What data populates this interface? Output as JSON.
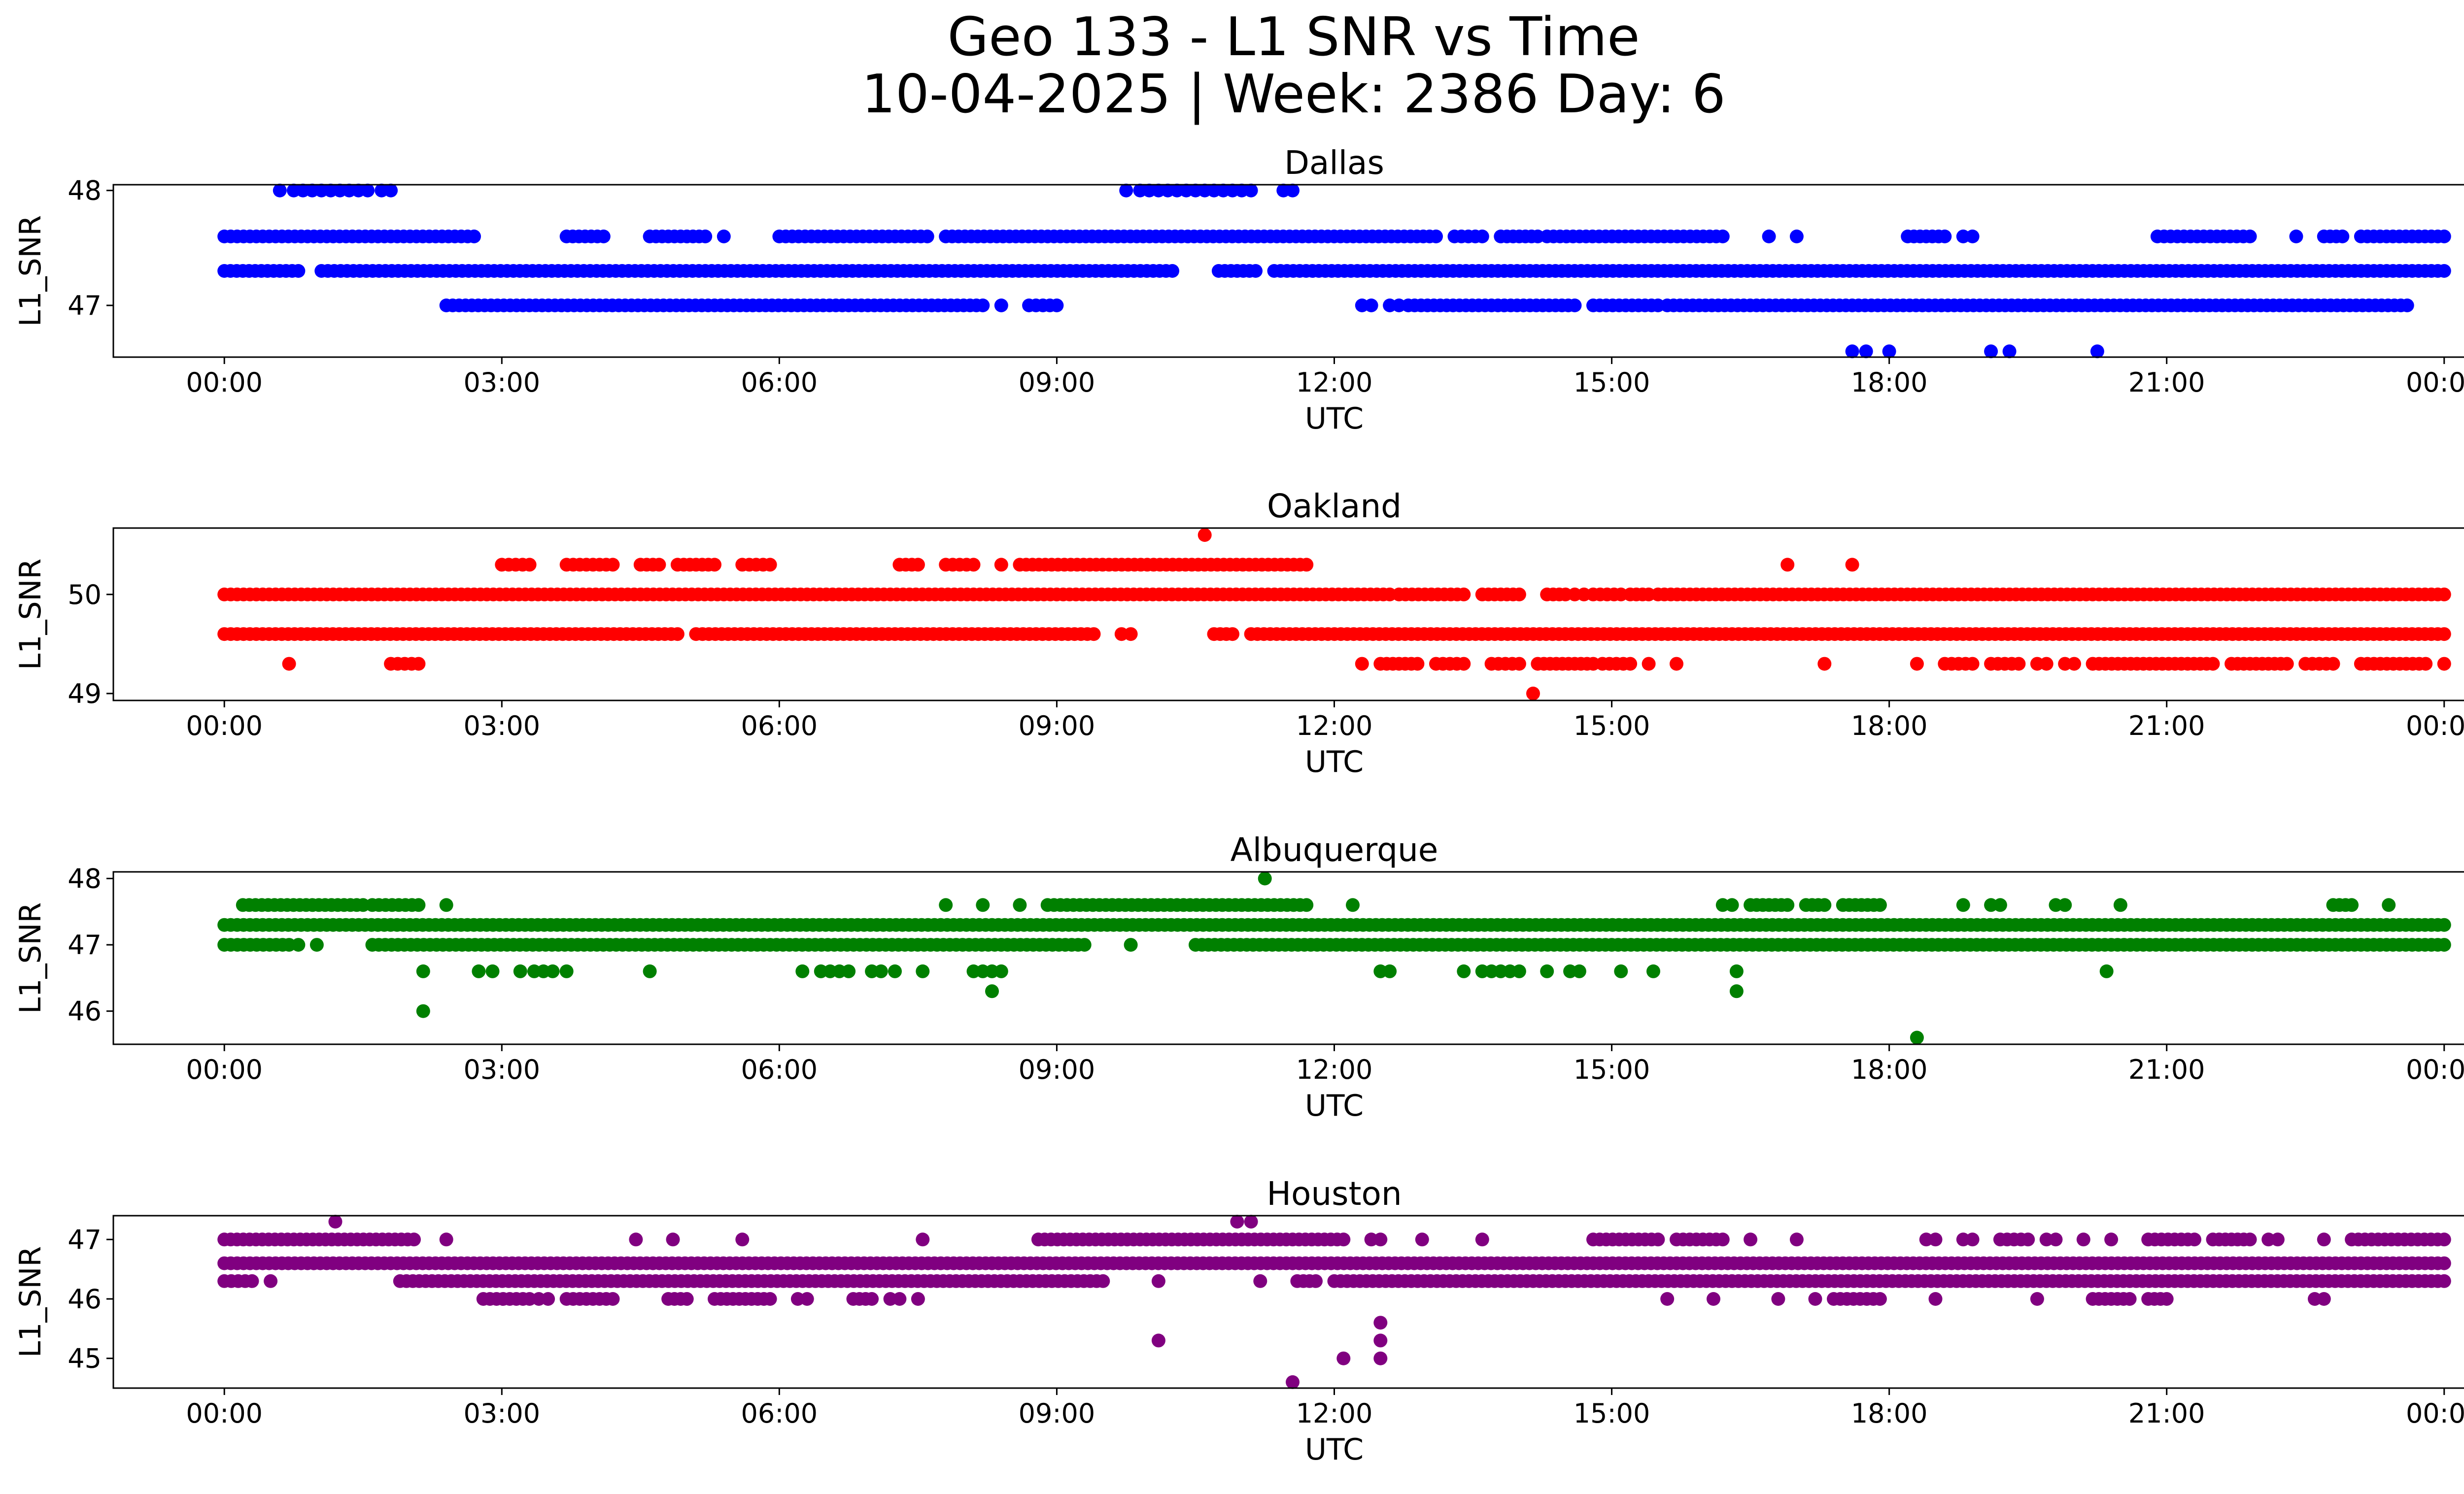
{
  "title_line1": "Geo 133 - L1 SNR vs Time",
  "title_line2": "10-04-2025 | Week: 2386 Day: 6",
  "chart_data": [
    {
      "type": "scatter",
      "title": "Dallas",
      "color": "#0000ff",
      "xlabel": "UTC",
      "ylabel": "L1_SNR",
      "x_ticks": [
        "00:00",
        "03:00",
        "06:00",
        "09:00",
        "12:00",
        "15:00",
        "18:00",
        "21:00",
        "00:00"
      ],
      "x_unit": "hours UTC",
      "xlim": [
        -1.2,
        25.2
      ],
      "ylim": [
        46.55,
        48.05
      ],
      "y_ticks": [
        47,
        48
      ],
      "series": [
        {
          "name": "L1 SNR 48.0",
          "y": 48.0,
          "x": [
            0.6,
            0.75,
            0.85,
            0.95,
            1.05,
            1.15,
            1.25,
            1.35,
            1.45,
            1.55,
            1.7,
            1.8,
            9.75,
            9.9,
            10.0,
            10.1,
            10.2,
            10.3,
            10.4,
            10.5,
            10.6,
            10.7,
            10.8,
            10.9,
            11.0,
            11.1,
            11.45,
            11.55
          ]
        },
        {
          "name": "L1 SNR 47.6",
          "y": 47.6,
          "runs": [
            [
              0.0,
              2.7
            ],
            [
              3.7,
              4.1
            ],
            [
              4.6,
              5.2
            ],
            [
              5.4,
              5.4
            ],
            [
              6.0,
              7.6
            ],
            [
              7.8,
              13.1
            ],
            [
              13.3,
              13.6
            ],
            [
              13.8,
              14.2
            ],
            [
              14.3,
              16.2
            ],
            [
              16.7,
              16.7
            ],
            [
              17.0,
              17.0
            ],
            [
              18.2,
              18.6
            ],
            [
              18.8,
              18.9
            ],
            [
              20.9,
              21.9
            ],
            [
              22.4,
              22.4
            ],
            [
              22.7,
              22.9
            ],
            [
              23.1,
              24.0
            ]
          ]
        },
        {
          "name": "L1 SNR 47.3",
          "y": 47.3,
          "runs": [
            [
              0.0,
              0.8
            ],
            [
              1.05,
              10.25
            ],
            [
              10.75,
              11.15
            ],
            [
              11.35,
              24.0
            ]
          ]
        },
        {
          "name": "L1 SNR 47.0",
          "y": 47.0,
          "runs": [
            [
              2.4,
              8.2
            ],
            [
              8.4,
              8.4
            ],
            [
              8.7,
              9.0
            ],
            [
              12.3,
              12.4
            ],
            [
              12.6,
              12.7
            ],
            [
              12.8,
              14.6
            ],
            [
              14.8,
              15.5
            ],
            [
              15.6,
              23.6
            ]
          ]
        },
        {
          "name": "L1 SNR 46.6",
          "y": 46.6,
          "x": [
            17.6,
            17.75,
            18.0,
            19.1,
            19.3,
            20.25
          ]
        }
      ]
    },
    {
      "type": "scatter",
      "title": "Oakland",
      "color": "#ff0000",
      "xlabel": "UTC",
      "ylabel": "L1_SNR",
      "x_ticks": [
        "00:00",
        "03:00",
        "06:00",
        "09:00",
        "12:00",
        "15:00",
        "18:00",
        "21:00",
        "00:00"
      ],
      "x_unit": "hours UTC",
      "xlim": [
        -1.2,
        25.2
      ],
      "ylim": [
        48.93,
        50.67
      ],
      "y_ticks": [
        49,
        50
      ],
      "series": [
        {
          "name": "L1 SNR 50.6",
          "y": 50.6,
          "x": [
            10.6
          ]
        },
        {
          "name": "L1 SNR 50.3",
          "y": 50.3,
          "runs": [
            [
              3.0,
              3.3
            ],
            [
              3.7,
              4.2
            ],
            [
              4.5,
              4.7
            ],
            [
              4.9,
              5.3
            ],
            [
              5.6,
              5.9
            ],
            [
              7.3,
              7.5
            ],
            [
              7.8,
              8.1
            ],
            [
              8.4,
              8.4
            ],
            [
              8.6,
              11.7
            ],
            [
              16.9,
              16.9
            ],
            [
              17.6,
              17.6
            ]
          ]
        },
        {
          "name": "L1 SNR 50.0",
          "y": 50.0,
          "runs": [
            [
              0.0,
              12.6
            ],
            [
              12.7,
              13.4
            ],
            [
              13.6,
              14.0
            ],
            [
              14.3,
              14.5
            ],
            [
              14.6,
              14.7
            ],
            [
              14.8,
              15.1
            ],
            [
              15.2,
              15.4
            ],
            [
              15.5,
              24.0
            ]
          ]
        },
        {
          "name": "L1 SNR 49.6",
          "y": 49.6,
          "runs": [
            [
              0.0,
              4.9
            ],
            [
              5.1,
              9.4
            ],
            [
              9.7,
              9.8
            ],
            [
              10.7,
              10.9
            ],
            [
              11.1,
              24.0
            ]
          ]
        },
        {
          "name": "L1 SNR 49.3",
          "y": 49.3,
          "runs": [
            [
              0.7,
              0.7
            ],
            [
              1.8,
              2.1
            ],
            [
              12.3,
              12.3
            ],
            [
              12.5,
              12.9
            ],
            [
              13.1,
              13.4
            ],
            [
              13.7,
              14.0
            ],
            [
              14.2,
              14.8
            ],
            [
              14.9,
              15.2
            ],
            [
              15.4,
              15.4
            ],
            [
              15.7,
              15.7
            ],
            [
              17.3,
              17.3
            ],
            [
              18.3,
              18.3
            ],
            [
              18.6,
              18.9
            ],
            [
              19.1,
              19.4
            ],
            [
              19.6,
              19.7
            ],
            [
              19.9,
              20.0
            ],
            [
              20.2,
              21.5
            ],
            [
              21.7,
              22.3
            ],
            [
              22.5,
              22.8
            ],
            [
              23.1,
              23.8
            ],
            [
              24.0,
              24.0
            ]
          ]
        },
        {
          "name": "L1 SNR 49.0",
          "y": 49.0,
          "x": [
            14.15
          ]
        }
      ]
    },
    {
      "type": "scatter",
      "title": "Albuquerque",
      "color": "#008000",
      "xlabel": "UTC",
      "ylabel": "L1_SNR",
      "x_ticks": [
        "00:00",
        "03:00",
        "06:00",
        "09:00",
        "12:00",
        "15:00",
        "18:00",
        "21:00",
        "00:00"
      ],
      "x_unit": "hours UTC",
      "xlim": [
        -1.2,
        25.2
      ],
      "ylim": [
        45.5,
        48.1
      ],
      "y_ticks": [
        46,
        47,
        48
      ],
      "series": [
        {
          "name": "L1 SNR 48.0",
          "y": 48.0,
          "x": [
            11.25
          ]
        },
        {
          "name": "L1 SNR 47.6",
          "y": 47.6,
          "runs": [
            [
              0.2,
              1.5
            ],
            [
              1.6,
              2.1
            ],
            [
              2.4,
              2.4
            ],
            [
              7.8,
              7.8
            ],
            [
              8.2,
              8.2
            ],
            [
              8.6,
              8.6
            ],
            [
              8.9,
              11.7
            ],
            [
              12.2,
              12.2
            ],
            [
              16.2,
              16.3
            ],
            [
              16.5,
              16.9
            ],
            [
              17.1,
              17.3
            ],
            [
              17.5,
              17.9
            ],
            [
              18.8,
              18.8
            ],
            [
              19.1,
              19.2
            ],
            [
              19.8,
              19.9
            ],
            [
              20.5,
              20.5
            ],
            [
              22.8,
              23.0
            ],
            [
              23.4,
              23.4
            ]
          ]
        },
        {
          "name": "L1 SNR 47.3",
          "y": 47.3,
          "runs": [
            [
              0.0,
              24.0
            ]
          ]
        },
        {
          "name": "L1 SNR 47.0",
          "y": 47.0,
          "runs": [
            [
              0.0,
              0.7
            ],
            [
              0.8,
              0.8
            ],
            [
              1.0,
              1.0
            ],
            [
              1.6,
              9.3
            ],
            [
              9.8,
              9.8
            ],
            [
              10.5,
              24.0
            ]
          ]
        },
        {
          "name": "L1 SNR 46.6",
          "y": 46.6,
          "x": [
            2.15,
            2.75,
            2.9,
            3.2,
            3.35,
            3.45,
            3.55,
            3.7,
            4.6,
            6.25,
            6.45,
            6.55,
            6.65,
            6.75,
            7.0,
            7.1,
            7.25,
            7.55,
            8.1,
            8.2,
            8.3,
            8.4,
            12.5,
            12.6,
            13.4,
            13.6,
            13.7,
            13.8,
            13.9,
            14.0,
            14.3,
            14.55,
            14.65,
            15.1,
            15.45,
            16.35,
            20.35
          ]
        },
        {
          "name": "L1 SNR 46.3",
          "y": 46.3,
          "x": [
            8.3,
            16.35
          ]
        },
        {
          "name": "L1 SNR 46.0",
          "y": 46.0,
          "x": [
            2.15
          ]
        },
        {
          "name": "L1 SNR 45.6",
          "y": 45.6,
          "x": [
            18.3
          ]
        }
      ]
    },
    {
      "type": "scatter",
      "title": "Houston",
      "color": "#800080",
      "xlabel": "UTC",
      "ylabel": "L1_SNR",
      "x_ticks": [
        "00:00",
        "03:00",
        "06:00",
        "09:00",
        "12:00",
        "15:00",
        "18:00",
        "21:00",
        "00:00"
      ],
      "x_unit": "hours UTC",
      "xlim": [
        -1.2,
        25.2
      ],
      "ylim": [
        44.5,
        47.4
      ],
      "y_ticks": [
        45,
        46,
        47
      ],
      "series": [
        {
          "name": "L1 SNR 47.3",
          "y": 47.3,
          "x": [
            1.2,
            10.95,
            11.1
          ]
        },
        {
          "name": "L1 SNR 47.0",
          "y": 47.0,
          "runs": [
            [
              0.0,
              2.05
            ],
            [
              2.4,
              2.4
            ],
            [
              4.45,
              4.45
            ],
            [
              4.85,
              4.85
            ],
            [
              5.6,
              5.6
            ],
            [
              7.55,
              7.55
            ],
            [
              8.8,
              12.1
            ],
            [
              12.4,
              12.5
            ],
            [
              12.95,
              12.95
            ],
            [
              13.6,
              13.6
            ],
            [
              14.8,
              15.5
            ],
            [
              15.7,
              16.2
            ],
            [
              16.5,
              16.5
            ],
            [
              17.0,
              17.0
            ],
            [
              18.4,
              18.5
            ],
            [
              18.8,
              18.9
            ],
            [
              19.2,
              19.5
            ],
            [
              19.7,
              19.8
            ],
            [
              20.1,
              20.1
            ],
            [
              20.4,
              20.4
            ],
            [
              20.8,
              21.3
            ],
            [
              21.5,
              21.9
            ],
            [
              22.1,
              22.2
            ],
            [
              22.7,
              22.7
            ],
            [
              23.0,
              24.0
            ]
          ]
        },
        {
          "name": "L1 SNR 46.6",
          "y": 46.6,
          "runs": [
            [
              0.0,
              24.0
            ]
          ]
        },
        {
          "name": "L1 SNR 46.3",
          "y": 46.3,
          "runs": [
            [
              0.0,
              0.3
            ],
            [
              0.5,
              0.5
            ],
            [
              1.9,
              9.5
            ],
            [
              10.1,
              10.1
            ],
            [
              11.2,
              11.2
            ],
            [
              11.6,
              11.8
            ],
            [
              12.0,
              24.0
            ]
          ]
        },
        {
          "name": "L1 SNR 46.0",
          "y": 46.0,
          "runs": [
            [
              2.8,
              3.3
            ],
            [
              3.4,
              3.5
            ],
            [
              3.7,
              4.2
            ],
            [
              4.8,
              5.0
            ],
            [
              5.3,
              5.9
            ],
            [
              6.2,
              6.3
            ],
            [
              6.8,
              7.0
            ],
            [
              7.2,
              7.3
            ],
            [
              7.5,
              7.5
            ],
            [
              15.6,
              15.6
            ],
            [
              16.1,
              16.1
            ],
            [
              16.8,
              16.8
            ],
            [
              17.2,
              17.2
            ],
            [
              17.4,
              17.9
            ],
            [
              18.5,
              18.5
            ],
            [
              19.6,
              19.6
            ],
            [
              20.2,
              20.6
            ],
            [
              20.8,
              21.0
            ],
            [
              22.6,
              22.7
            ]
          ]
        },
        {
          "name": "L1 SNR 45.6",
          "y": 45.6,
          "x": [
            12.5
          ]
        },
        {
          "name": "L1 SNR 45.3",
          "y": 45.3,
          "x": [
            10.1,
            12.5
          ]
        },
        {
          "name": "L1 SNR 45.0",
          "y": 45.0,
          "x": [
            12.1,
            12.5
          ]
        },
        {
          "name": "L1 SNR 44.6",
          "y": 44.6,
          "x": [
            11.55
          ]
        }
      ]
    }
  ]
}
